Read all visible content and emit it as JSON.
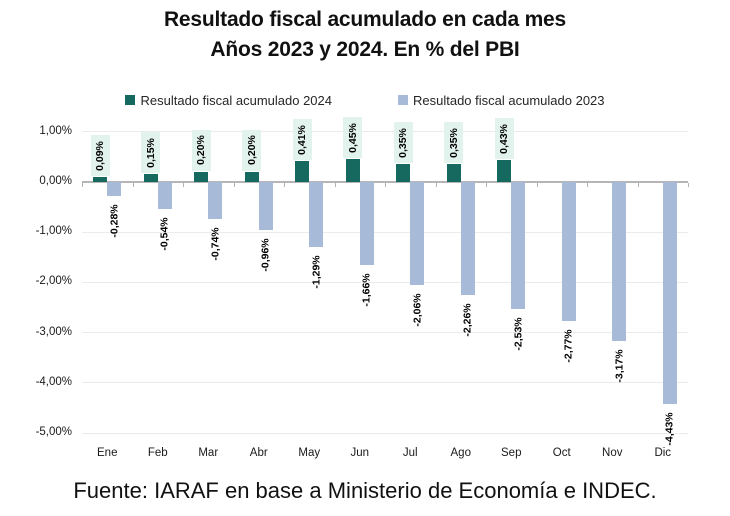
{
  "title": {
    "line1": "Resultado fiscal acumulado en cada mes",
    "line2": "Años 2023 y 2024. En % del PBI"
  },
  "legend": {
    "items": [
      {
        "label": "Resultado fiscal acumulado 2024",
        "color": "#15695f"
      },
      {
        "label": "Resultado fiscal acumulado 2023",
        "color": "#a7bbd9"
      }
    ]
  },
  "chart_data": {
    "type": "bar",
    "title": "Resultado fiscal acumulado en cada mes. Años 2023 y 2024. En % del PBI",
    "categories": [
      "Ene",
      "Feb",
      "Mar",
      "Abr",
      "May",
      "Jun",
      "Jul",
      "Ago",
      "Sep",
      "Oct",
      "Nov",
      "Dic"
    ],
    "series": [
      {
        "name": "Resultado fiscal acumulado 2024",
        "color": "#15695f",
        "values": [
          0.09,
          0.15,
          0.2,
          0.2,
          0.41,
          0.45,
          0.35,
          0.35,
          0.43,
          null,
          null,
          null
        ],
        "data_labels": [
          "0,09%",
          "0,15%",
          "0,20%",
          "0,20%",
          "0,41%",
          "0,45%",
          "0,35%",
          "0,35%",
          "0,43%",
          null,
          null,
          null
        ],
        "label_background": "#e2f2ec"
      },
      {
        "name": "Resultado fiscal acumulado 2023",
        "color": "#a7bbd9",
        "values": [
          -0.28,
          -0.54,
          -0.74,
          -0.96,
          -1.29,
          -1.66,
          -2.06,
          -2.26,
          -2.53,
          -2.77,
          -3.17,
          -4.43
        ],
        "data_labels": [
          "-0,28%",
          "-0,54%",
          "-0,74%",
          "-0,96%",
          "-1,29%",
          "-1,66%",
          "-2,06%",
          "-2,26%",
          "-2,53%",
          "-2,77%",
          "-3,17%",
          "-4,43%"
        ],
        "label_background": null
      }
    ],
    "xlabel": "",
    "ylabel": "",
    "ylim": [
      -5,
      1
    ],
    "yticks": [
      {
        "value": 1,
        "label": "1,00%"
      },
      {
        "value": 0,
        "label": "0,00%"
      },
      {
        "value": -1,
        "label": "-1,00%"
      },
      {
        "value": -2,
        "label": "-2,00%"
      },
      {
        "value": -3,
        "label": "-3,00%"
      },
      {
        "value": -4,
        "label": "-4,00%"
      },
      {
        "value": -5,
        "label": "-5,00%"
      }
    ],
    "grid": "horizontal",
    "legend_position": "top"
  },
  "footer": {
    "source": "Fuente: IARAF en base a Ministerio de Economía e INDEC."
  },
  "colors": {
    "background": "#ffffff",
    "series_2024": "#15695f",
    "series_2023": "#a7bbd9",
    "label_box_background": "#e2f2ec",
    "gridline": "#ebebeb",
    "axis": "#b5b5b5",
    "text": "#000000"
  }
}
